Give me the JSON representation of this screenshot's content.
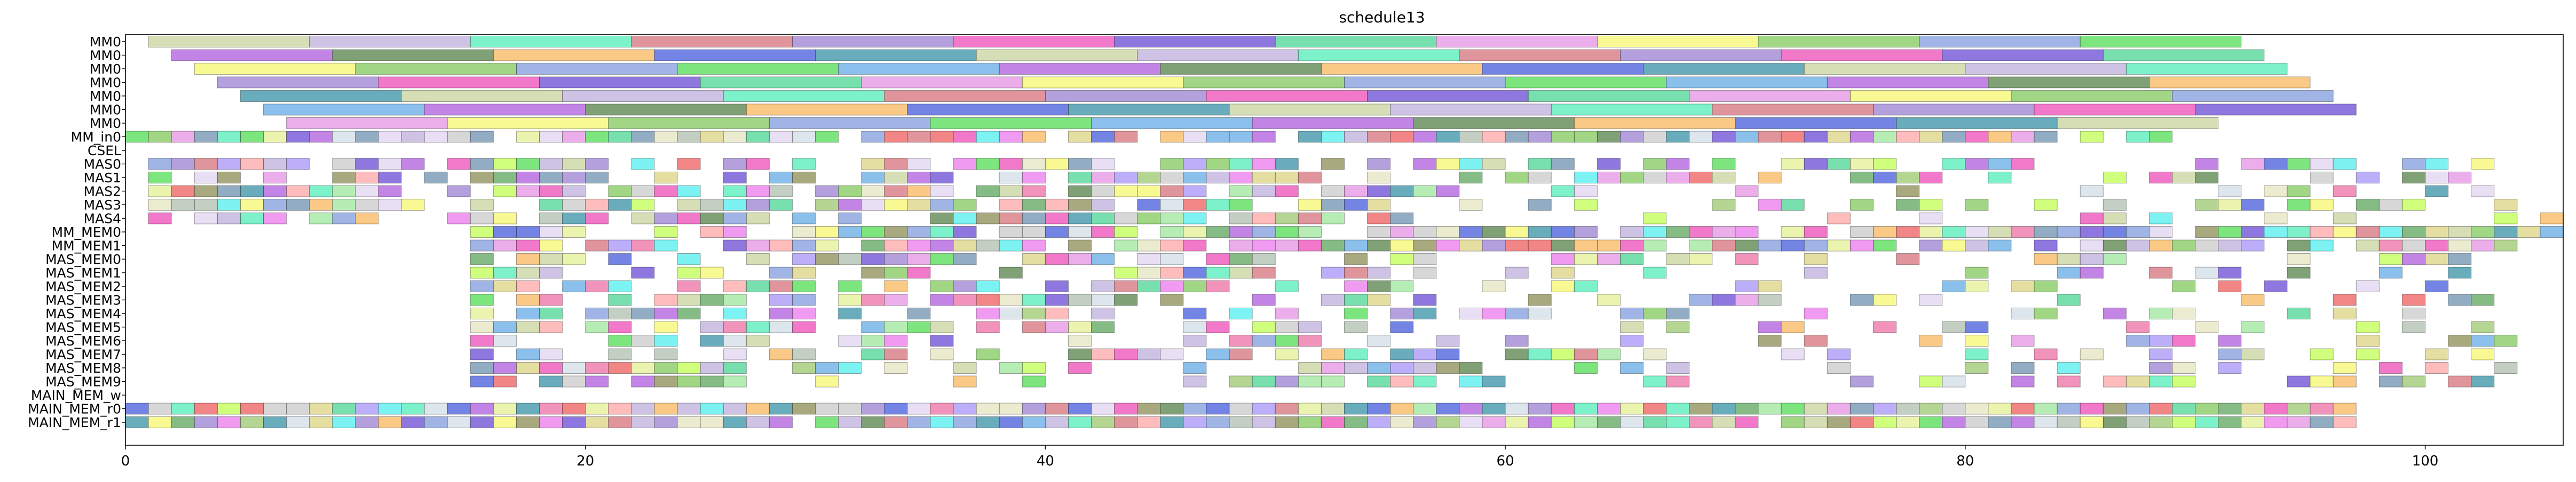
{
  "chart_data": {
    "type": "gantt",
    "title": "schedule13",
    "xlabel": "",
    "ylabel": "",
    "xlim": [
      0,
      106
    ],
    "x_ticks": [
      0,
      20,
      40,
      60,
      80,
      100
    ],
    "grid": false,
    "legend": "none",
    "rows": [
      "MM0",
      "MM0",
      "MM0",
      "MM0",
      "MM0",
      "MM0",
      "MM0",
      "MM_in0",
      "CSEL",
      "MAS0",
      "MAS1",
      "MAS2",
      "MAS3",
      "MAS4",
      "MM_MEM0",
      "MM_MEM1",
      "MAS_MEM0",
      "MAS_MEM1",
      "MAS_MEM2",
      "MAS_MEM3",
      "MAS_MEM4",
      "MAS_MEM5",
      "MAS_MEM6",
      "MAS_MEM7",
      "MAS_MEM8",
      "MAS_MEM9",
      "MAIN_MEM_w",
      "MAIN_MEM_r0",
      "MAIN_MEM_r1"
    ],
    "series_note": "Each row holds many unlabeled colored task blocks; block data below.",
    "rows_blocks": [
      {
        "row": 0,
        "tasks": [
          [
            1,
            8
          ],
          [
            8,
            15
          ],
          [
            15,
            22
          ],
          [
            22,
            29
          ],
          [
            29,
            36
          ],
          [
            36,
            43
          ],
          [
            43,
            50
          ],
          [
            50,
            57
          ],
          [
            57,
            64
          ],
          [
            64,
            71
          ],
          [
            71,
            78
          ],
          [
            78,
            85
          ],
          [
            85,
            92
          ]
        ]
      },
      {
        "row": 1,
        "tasks": [
          [
            2,
            9
          ],
          [
            9,
            16
          ],
          [
            16,
            23
          ],
          [
            23,
            30
          ],
          [
            30,
            37
          ],
          [
            37,
            44
          ],
          [
            44,
            51
          ],
          [
            51,
            58
          ],
          [
            58,
            65
          ],
          [
            65,
            72
          ],
          [
            72,
            79
          ],
          [
            79,
            86
          ],
          [
            86,
            93
          ]
        ]
      },
      {
        "row": 2,
        "tasks": [
          [
            3,
            10
          ],
          [
            10,
            17
          ],
          [
            17,
            24
          ],
          [
            24,
            31
          ],
          [
            31,
            38
          ],
          [
            38,
            45
          ],
          [
            45,
            52
          ],
          [
            52,
            59
          ],
          [
            59,
            66
          ],
          [
            66,
            73
          ],
          [
            73,
            80
          ],
          [
            80,
            87
          ],
          [
            87,
            94
          ]
        ]
      },
      {
        "row": 3,
        "tasks": [
          [
            4,
            11
          ],
          [
            11,
            18
          ],
          [
            18,
            25
          ],
          [
            25,
            32
          ],
          [
            32,
            39
          ],
          [
            39,
            46
          ],
          [
            46,
            53
          ],
          [
            53,
            60
          ],
          [
            60,
            67
          ],
          [
            67,
            74
          ],
          [
            74,
            81
          ],
          [
            81,
            88
          ],
          [
            88,
            95
          ]
        ]
      },
      {
        "row": 4,
        "tasks": [
          [
            5,
            12
          ],
          [
            12,
            19
          ],
          [
            19,
            26
          ],
          [
            26,
            33
          ],
          [
            33,
            40
          ],
          [
            40,
            47
          ],
          [
            47,
            54
          ],
          [
            54,
            61
          ],
          [
            61,
            68
          ],
          [
            68,
            75
          ],
          [
            75,
            82
          ],
          [
            82,
            89
          ],
          [
            89,
            96
          ]
        ]
      },
      {
        "row": 5,
        "tasks": [
          [
            6,
            13
          ],
          [
            13,
            20
          ],
          [
            20,
            27
          ],
          [
            27,
            34
          ],
          [
            34,
            41
          ],
          [
            41,
            48
          ],
          [
            48,
            55
          ],
          [
            55,
            62
          ],
          [
            62,
            69
          ],
          [
            69,
            76
          ],
          [
            76,
            83
          ],
          [
            83,
            90
          ],
          [
            90,
            97
          ]
        ]
      },
      {
        "row": 6,
        "tasks": [
          [
            7,
            14
          ],
          [
            14,
            21
          ],
          [
            21,
            28
          ],
          [
            28,
            35
          ],
          [
            35,
            42
          ],
          [
            42,
            49
          ],
          [
            49,
            56
          ],
          [
            56,
            63
          ],
          [
            63,
            70
          ],
          [
            70,
            77
          ],
          [
            77,
            84
          ],
          [
            84,
            91
          ]
        ]
      }
    ],
    "dense_rows": {
      "MM_in0": {
        "start": 0,
        "end": 90,
        "density": 0.95,
        "seed": 11
      },
      "MAS0": {
        "start": 1,
        "end": 104,
        "density": 0.72,
        "seed": 21
      },
      "MAS1": {
        "start": 1,
        "end": 104,
        "density": 0.72,
        "seed": 22
      },
      "MAS2": {
        "start": 1,
        "end": 104,
        "density": 0.72,
        "seed": 23
      },
      "MAS3": {
        "start": 1,
        "end": 104,
        "density": 0.72,
        "seed": 24
      },
      "MAS4": {
        "start": 1,
        "end": 106,
        "density": 0.75,
        "seed": 25
      },
      "MM_MEM0": {
        "start": 15,
        "end": 106,
        "density": 0.8,
        "seed": 31
      },
      "MM_MEM1": {
        "start": 15,
        "end": 104,
        "density": 0.78,
        "seed": 32
      },
      "MAS_MEM0": {
        "start": 15,
        "end": 104,
        "density": 0.65,
        "seed": 41
      },
      "MAS_MEM1": {
        "start": 15,
        "end": 104,
        "density": 0.65,
        "seed": 42
      },
      "MAS_MEM2": {
        "start": 15,
        "end": 104,
        "density": 0.65,
        "seed": 43
      },
      "MAS_MEM3": {
        "start": 15,
        "end": 104,
        "density": 0.62,
        "seed": 44
      },
      "MAS_MEM4": {
        "start": 15,
        "end": 104,
        "density": 0.6,
        "seed": 45
      },
      "MAS_MEM5": {
        "start": 15,
        "end": 104,
        "density": 0.6,
        "seed": 46
      },
      "MAS_MEM6": {
        "start": 15,
        "end": 104,
        "density": 0.58,
        "seed": 47
      },
      "MAS_MEM7": {
        "start": 15,
        "end": 104,
        "density": 0.58,
        "seed": 48
      },
      "MAS_MEM8": {
        "start": 15,
        "end": 104,
        "density": 0.55,
        "seed": 49
      },
      "MAS_MEM9": {
        "start": 15,
        "end": 104,
        "density": 0.55,
        "seed": 50
      },
      "MAIN_MEM_r0": {
        "start": 0,
        "end": 97,
        "density": 0.98,
        "seed": 61
      },
      "MAIN_MEM_r1": {
        "start": 0,
        "end": 97,
        "density": 0.98,
        "seed": 62
      }
    },
    "palette": [
      "#cfd8a8",
      "#e4d9f2",
      "#8fcf6f",
      "#c8ff66",
      "#c7b8e0",
      "#ee88ee",
      "#8fa8e0",
      "#a8cf7f",
      "#66eec0",
      "#e0d890",
      "#66e066",
      "#f080b0",
      "#d9838a",
      "#e8f2a0",
      "#76b5e8",
      "#d7e0ea",
      "#a68fd6",
      "#e8e8c8",
      "#b870e0",
      "#f07070",
      "#f060c0",
      "#b7c7b7",
      "#6a8f5e",
      "#66f0f0",
      "#7a5fd8",
      "#a8eaa8",
      "#f8c070",
      "#7f9fb8",
      "#60d9a0",
      "#ffb0b0",
      "#5b6fe0",
      "#9a9a6a",
      "#e8a0e8",
      "#b0a0f8",
      "#4f9fb0",
      "#d0d0d0",
      "#f8f880",
      "#70b070"
    ]
  }
}
